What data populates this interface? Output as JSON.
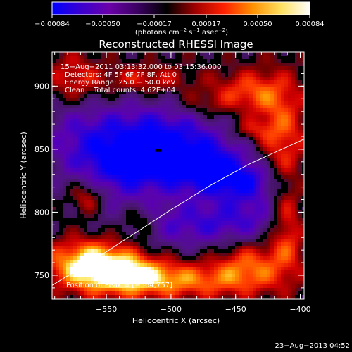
{
  "colorbar": {
    "ticks": [
      "−0.00084",
      "−0.00050",
      "−0.00017",
      "0.00017",
      "0.00050",
      "0.00084"
    ],
    "unit_prefix": "(photons cm",
    "unit_exp1": "−2",
    "unit_mid": " s",
    "unit_exp2": "−1",
    "unit_mid2": " asec",
    "unit_exp3": "−2",
    "unit_suffix": ")",
    "stops": [
      "#0000ff",
      "#3a00d0",
      "#6a00a8",
      "#3a0060",
      "#000000",
      "#a00000",
      "#ff2000",
      "#ff9000",
      "#ffe060",
      "#ffffff"
    ]
  },
  "chart_data": {
    "type": "heatmap",
    "title": "Reconstructed RHESSI Image",
    "xlabel": "Heliocentric X (arcsec)",
    "ylabel": "Heliocentric Y (arcsec)",
    "xlim": [
      -592,
      -397
    ],
    "ylim": [
      731,
      927
    ],
    "x_ticks": [
      -550,
      -500,
      -450,
      -400
    ],
    "y_ticks": [
      750,
      800,
      850,
      900
    ],
    "x_tick_labels": [
      "−550",
      "−500",
      "−450",
      "−400"
    ],
    "y_tick_labels": [
      "750",
      "800",
      "850",
      "900"
    ],
    "annotations": {
      "time": "15−Aug−2011 03:13:32.000 to 03:15:36.000",
      "detectors": "Detectors: 4F 5F 6F 7F 8F, Att 0",
      "energy": "Energy Range: 25.0 − 50.0 keV",
      "clean": "Clean    Total counts: 4.62E+04",
      "peak": "Position of Peak = [−564,757]"
    },
    "limb_curve": [
      [
        -592,
        742
      ],
      [
        -560,
        762
      ],
      [
        -530,
        782
      ],
      [
        -500,
        802
      ],
      [
        -470,
        821
      ],
      [
        -440,
        838
      ],
      [
        -397,
        858
      ]
    ],
    "peak_position": [
      -564,
      757
    ],
    "min_position": [
      -510,
      849
    ],
    "value_range": [
      -0.00084,
      0.00084
    ],
    "blobs": [
      {
        "x": -515,
        "y": 858,
        "sx": 40,
        "sy": 20,
        "v": -0.0007
      },
      {
        "x": -485,
        "y": 838,
        "sx": 30,
        "sy": 14,
        "v": -0.00055
      },
      {
        "x": -450,
        "y": 825,
        "sx": 22,
        "sy": 10,
        "v": -0.00045
      },
      {
        "x": -540,
        "y": 835,
        "sx": 20,
        "sy": 18,
        "v": -0.0004
      },
      {
        "x": -470,
        "y": 790,
        "sx": 40,
        "sy": 12,
        "v": -0.00035
      },
      {
        "x": -430,
        "y": 810,
        "sx": 25,
        "sy": 20,
        "v": -0.0003
      },
      {
        "x": -575,
        "y": 860,
        "sx": 20,
        "sy": 30,
        "v": -0.00025
      },
      {
        "x": -500,
        "y": 800,
        "sx": 50,
        "sy": 40,
        "v": -0.0002
      },
      {
        "x": -560,
        "y": 760,
        "sx": 25,
        "sy": 14,
        "v": 0.00084
      },
      {
        "x": -530,
        "y": 750,
        "sx": 30,
        "sy": 12,
        "v": 0.0006
      },
      {
        "x": -480,
        "y": 745,
        "sx": 40,
        "sy": 10,
        "v": 0.00045
      },
      {
        "x": -440,
        "y": 760,
        "sx": 20,
        "sy": 14,
        "v": 0.0005
      },
      {
        "x": -410,
        "y": 790,
        "sx": 10,
        "sy": 25,
        "v": 0.00055
      },
      {
        "x": -415,
        "y": 860,
        "sx": 14,
        "sy": 30,
        "v": 0.0005
      },
      {
        "x": -440,
        "y": 895,
        "sx": 20,
        "sy": 12,
        "v": 0.00045
      },
      {
        "x": -520,
        "y": 905,
        "sx": 25,
        "sy": 8,
        "v": 0.00035
      },
      {
        "x": -575,
        "y": 905,
        "sx": 15,
        "sy": 15,
        "v": 0.0004
      },
      {
        "x": -565,
        "y": 812,
        "sx": 10,
        "sy": 10,
        "v": 0.00045
      },
      {
        "x": -525,
        "y": 793,
        "sx": 10,
        "sy": 8,
        "v": 0.00035
      },
      {
        "x": -475,
        "y": 885,
        "sx": 15,
        "sy": 8,
        "v": 0.00025
      },
      {
        "x": -440,
        "y": 865,
        "sx": 12,
        "sy": 6,
        "v": 0.0003
      }
    ]
  },
  "footer": {
    "date": "23−Aug−2013 04:52"
  }
}
